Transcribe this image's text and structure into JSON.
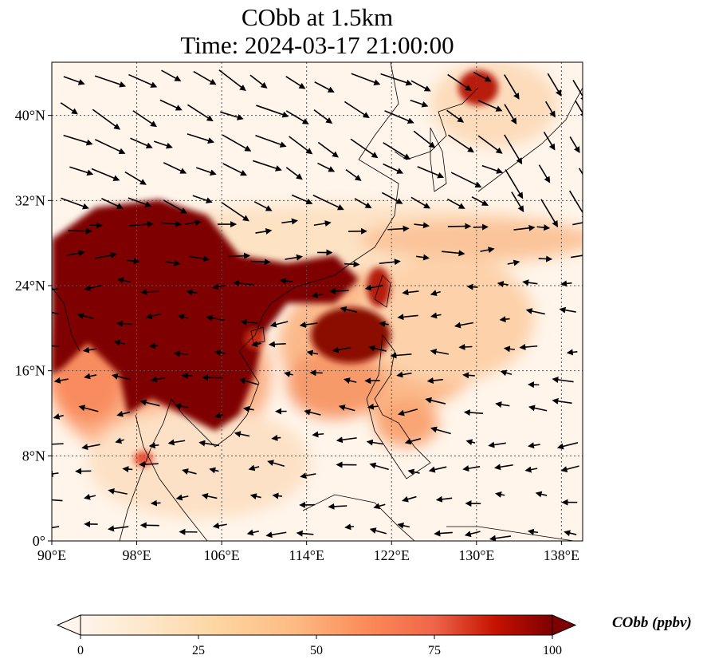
{
  "title": {
    "line1": "CObb at 1.5km",
    "line2": "Time: 2024-03-17 21:00:00"
  },
  "map": {
    "variable": "CObb",
    "level": "1.5km",
    "extent": {
      "lon": [
        90,
        140
      ],
      "lat": [
        0,
        45
      ]
    },
    "lon_ticks": [
      "90°E",
      "98°E",
      "106°E",
      "114°E",
      "122°E",
      "130°E",
      "138°E"
    ],
    "lat_ticks": [
      "0°",
      "8°N",
      "16°N",
      "24°N",
      "32°N",
      "40°N"
    ],
    "gridlines": true,
    "colors": {
      "low": "#fff5eb",
      "mid": "#fd8d3c",
      "high": "#7f0000",
      "coast": "#000000"
    }
  },
  "colorbar": {
    "label": "CObb (ppbv)",
    "ticks": [
      "0",
      "25",
      "50",
      "75",
      "100"
    ],
    "range": [
      0,
      100
    ],
    "extend": "both",
    "colormap": "OrRd"
  }
}
